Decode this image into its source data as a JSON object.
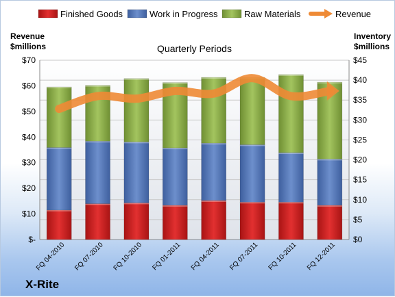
{
  "chart_data": {
    "type": "bar",
    "stacked": true,
    "title": "",
    "subtitle": "Quarterly Periods",
    "company": "X-Rite",
    "categories": [
      "FQ 04-2010",
      "FQ 07-2010",
      "FQ 10-2010",
      "FQ 01-2011",
      "FQ 04-2011",
      "FQ 07-2011",
      "FQ 10-2011",
      "FQ 12-2011"
    ],
    "series": [
      {
        "name": "Finished Goods",
        "axis": "right",
        "color": "#cc1f1f",
        "values": [
          7.4,
          9.0,
          9.2,
          8.6,
          9.8,
          9.4,
          9.4,
          8.6
        ]
      },
      {
        "name": "Work in Progress",
        "axis": "right",
        "color": "#4f73b8",
        "values": [
          15.7,
          15.7,
          15.3,
          14.4,
          14.4,
          14.4,
          12.4,
          11.6
        ]
      },
      {
        "name": "Raw Materials",
        "axis": "right",
        "color": "#8fb04a",
        "values": [
          15.2,
          14.0,
          15.9,
          16.4,
          16.5,
          16.9,
          19.6,
          19.3
        ]
      },
      {
        "name": "Revenue",
        "axis": "left",
        "type": "line",
        "color": "#ee8a35",
        "values": [
          51,
          56,
          55,
          58,
          57,
          63,
          56,
          58
        ]
      }
    ],
    "y_left": {
      "label_line1": "Revenue",
      "label_line2": "$millions",
      "ylim": [
        0,
        70
      ],
      "ticks": [
        "$-",
        "$10",
        "$20",
        "$30",
        "$40",
        "$50",
        "$60",
        "$70"
      ]
    },
    "y_right": {
      "label_line1": "Inventory",
      "label_line2": "$millions",
      "ylim": [
        0,
        45
      ],
      "ticks": [
        "$0",
        "$5",
        "$10",
        "$15",
        "$20",
        "$25",
        "$30",
        "$35",
        "$40",
        "$45"
      ]
    },
    "grid": true,
    "legend_position": "top"
  }
}
